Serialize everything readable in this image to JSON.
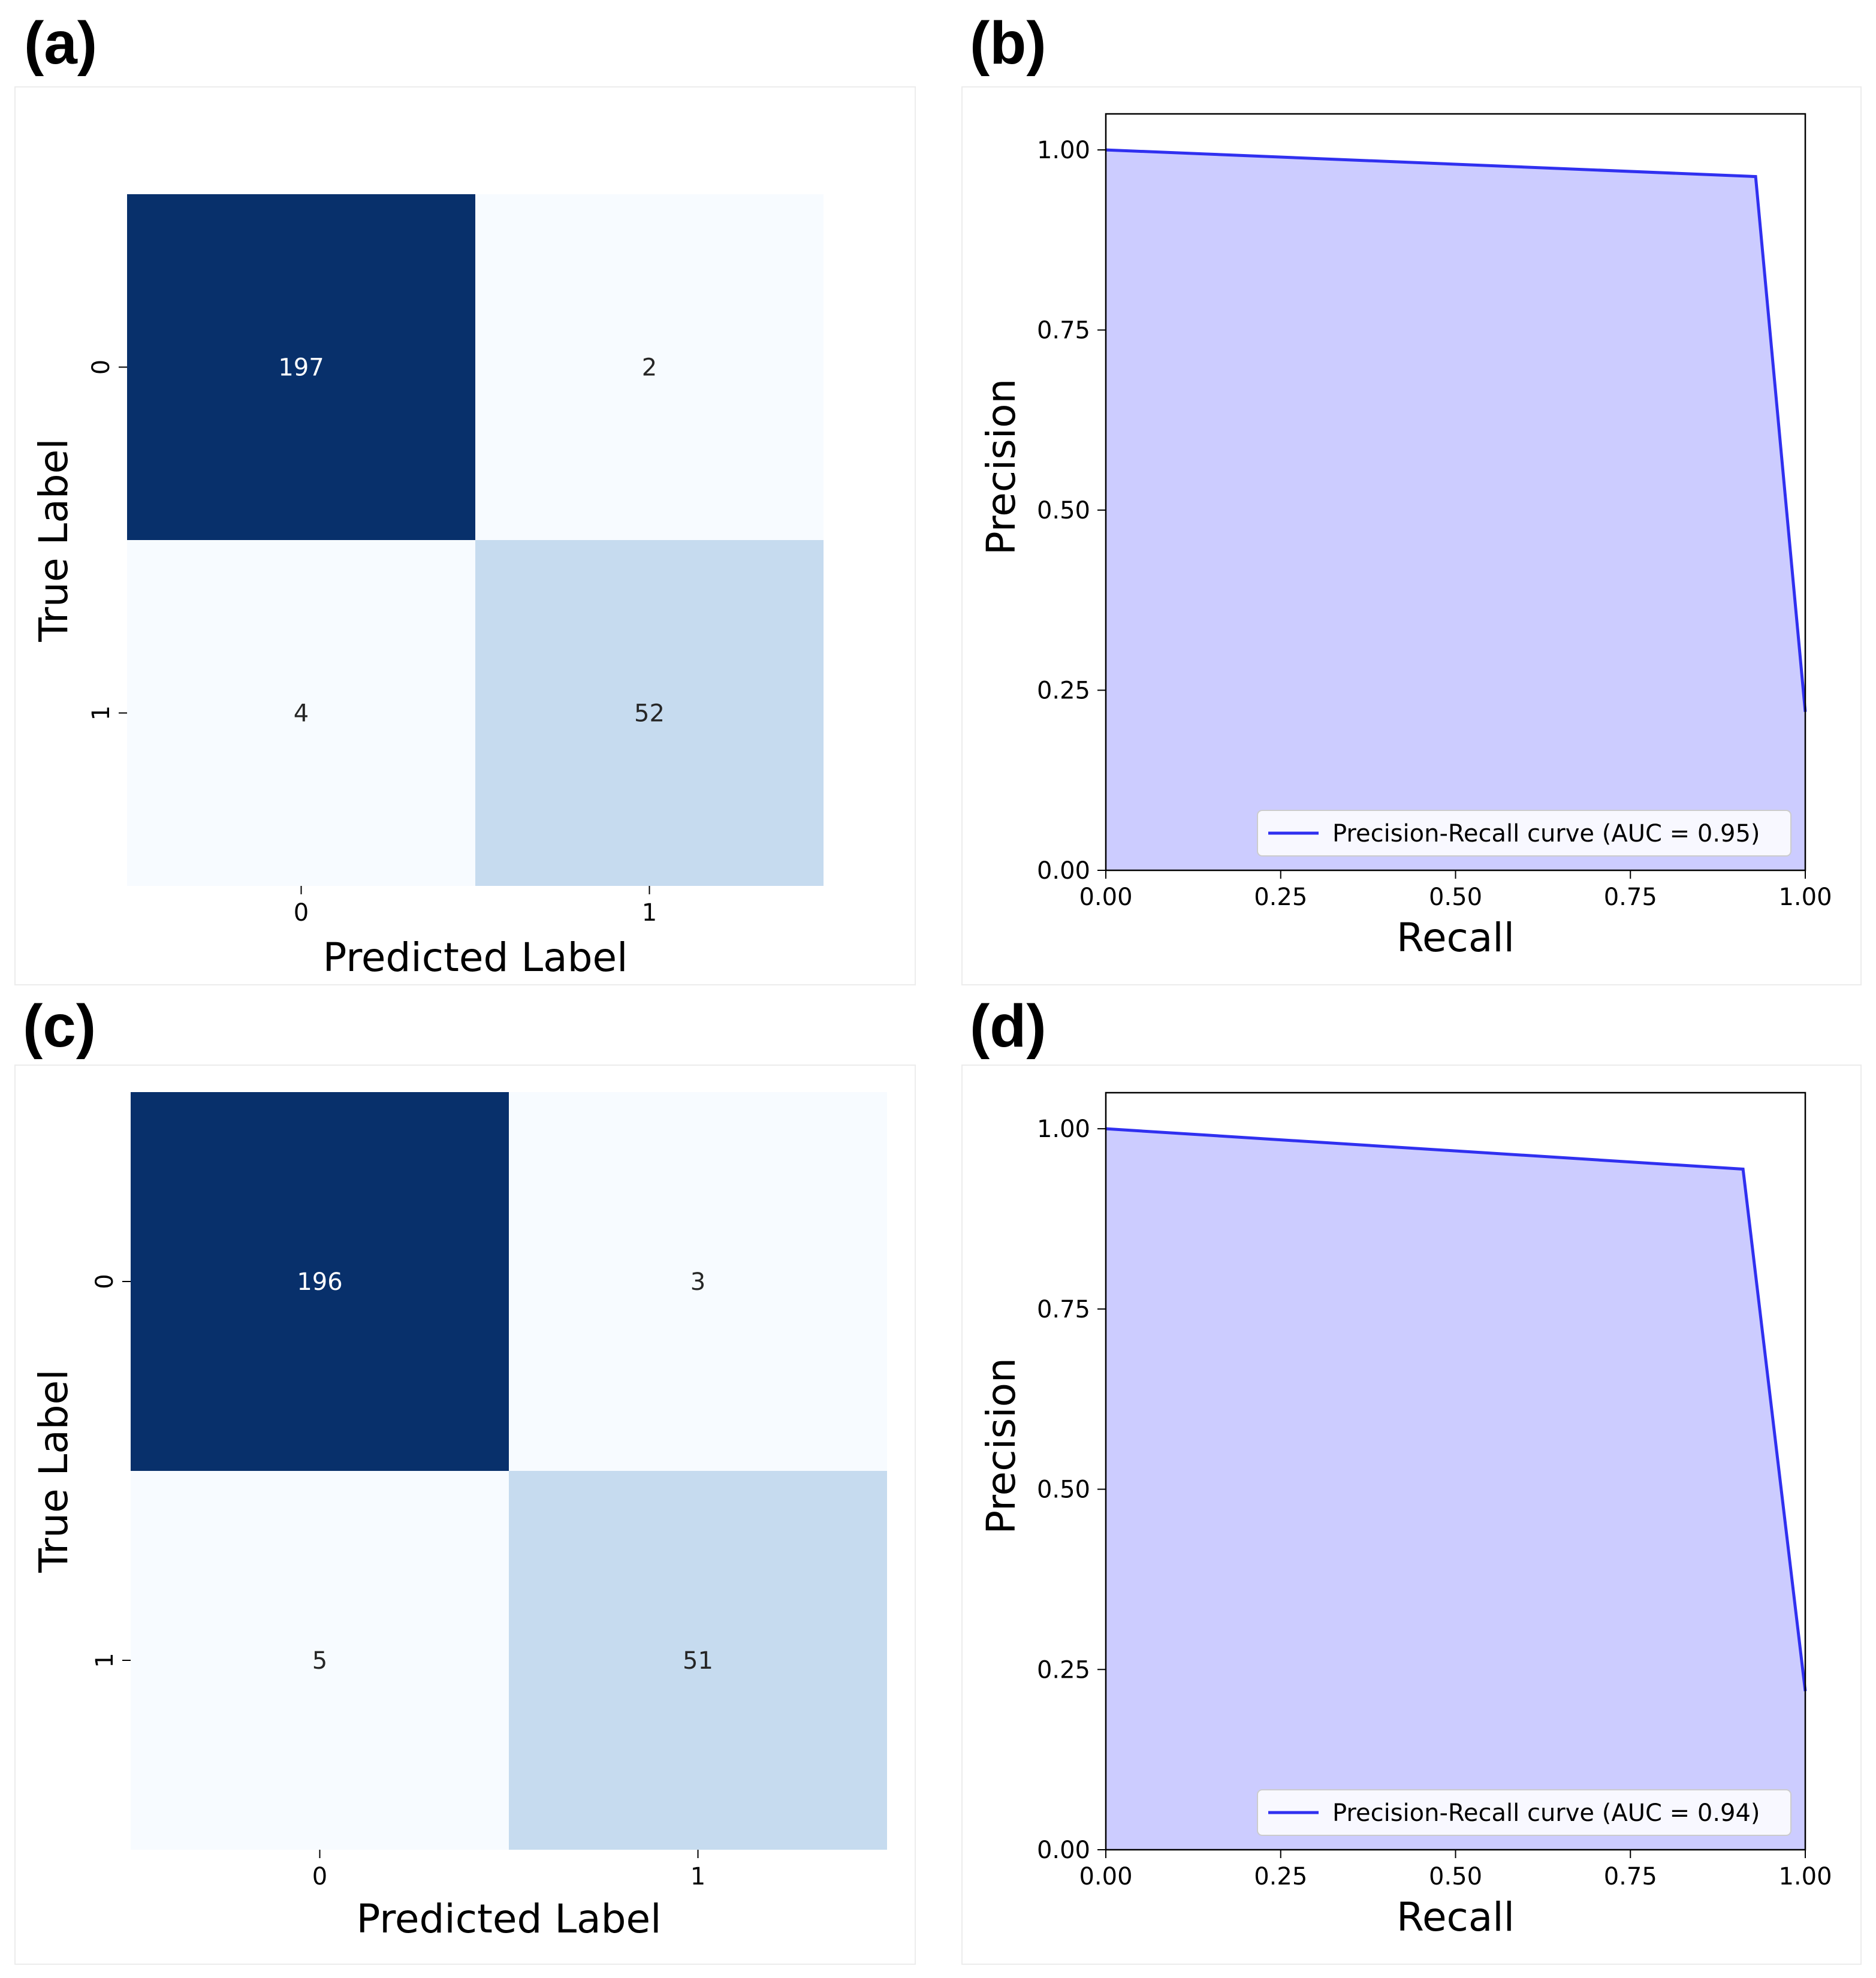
{
  "panels": {
    "a": "(a)",
    "b": "(b)",
    "c": "(c)",
    "d": "(d)"
  },
  "colors": {
    "cm_dark": "#08306b",
    "cm_light": "#f7fbff",
    "cm_mid": "#c6dbef",
    "pr_line": "#3030f0",
    "pr_fill": "#ccccff"
  },
  "chart_data": [
    {
      "type": "heatmap",
      "panel": "(a)",
      "xlabel": "Predicted Label",
      "ylabel": "True Label",
      "x_ticks": [
        "0",
        "1"
      ],
      "y_ticks": [
        "0",
        "1"
      ],
      "matrix": [
        [
          197,
          2
        ],
        [
          4,
          52
        ]
      ],
      "cell_colors": [
        [
          "#08306b",
          "#f7fbff"
        ],
        [
          "#f7fbff",
          "#c6dbef"
        ]
      ],
      "text_colors": [
        [
          "#ffffff",
          "#262626"
        ],
        [
          "#262626",
          "#262626"
        ]
      ]
    },
    {
      "type": "area",
      "panel": "(b)",
      "xlabel": "Recall",
      "ylabel": "Precision",
      "xlim": [
        0.0,
        1.0
      ],
      "ylim": [
        0.0,
        1.05
      ],
      "x_ticks": [
        "0.00",
        "0.25",
        "0.50",
        "0.75",
        "1.00"
      ],
      "y_ticks": [
        "0.00",
        "0.25",
        "0.50",
        "0.75",
        "1.00"
      ],
      "series": [
        {
          "name": "Precision-Recall curve (AUC = 0.95)",
          "x": [
            0.0,
            0.929,
            1.0
          ],
          "y": [
            1.0,
            0.963,
            0.22
          ]
        }
      ],
      "legend_position": "lower-right"
    },
    {
      "type": "heatmap",
      "panel": "(c)",
      "xlabel": "Predicted Label",
      "ylabel": "True Label",
      "x_ticks": [
        "0",
        "1"
      ],
      "y_ticks": [
        "0",
        "1"
      ],
      "matrix": [
        [
          196,
          3
        ],
        [
          5,
          51
        ]
      ],
      "cell_colors": [
        [
          "#08306b",
          "#f7fbff"
        ],
        [
          "#f7fbff",
          "#c6dbef"
        ]
      ],
      "text_colors": [
        [
          "#ffffff",
          "#262626"
        ],
        [
          "#262626",
          "#262626"
        ]
      ]
    },
    {
      "type": "area",
      "panel": "(d)",
      "xlabel": "Recall",
      "ylabel": "Precision",
      "xlim": [
        0.0,
        1.0
      ],
      "ylim": [
        0.0,
        1.05
      ],
      "x_ticks": [
        "0.00",
        "0.25",
        "0.50",
        "0.75",
        "1.00"
      ],
      "y_ticks": [
        "0.00",
        "0.25",
        "0.50",
        "0.75",
        "1.00"
      ],
      "series": [
        {
          "name": "Precision-Recall curve (AUC = 0.94)",
          "x": [
            0.0,
            0.911,
            1.0
          ],
          "y": [
            1.0,
            0.944,
            0.22
          ]
        }
      ],
      "legend_position": "lower-right"
    }
  ]
}
